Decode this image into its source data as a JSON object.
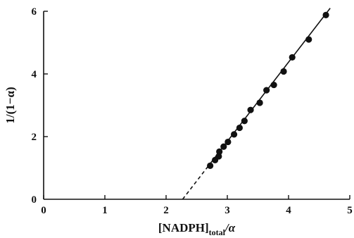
{
  "chart_data": {
    "type": "scatter",
    "xlim": [
      0,
      5
    ],
    "ylim": [
      0,
      6
    ],
    "xticks": [
      0,
      1,
      2,
      3,
      4,
      5
    ],
    "yticks": [
      2,
      4,
      6
    ],
    "xlabel_main": "[NADPH]",
    "xlabel_sub": "total",
    "xlabel_tail": "/α",
    "ylabel": "1/(1−α)",
    "grid": false,
    "points": [
      {
        "x": 2.72,
        "y": 1.07
      },
      {
        "x": 2.8,
        "y": 1.25
      },
      {
        "x": 2.86,
        "y": 1.37
      },
      {
        "x": 2.87,
        "y": 1.52
      },
      {
        "x": 2.94,
        "y": 1.68
      },
      {
        "x": 3.01,
        "y": 1.83
      },
      {
        "x": 3.11,
        "y": 2.07
      },
      {
        "x": 3.2,
        "y": 2.28
      },
      {
        "x": 3.28,
        "y": 2.5
      },
      {
        "x": 3.38,
        "y": 2.85
      },
      {
        "x": 3.53,
        "y": 3.08
      },
      {
        "x": 3.64,
        "y": 3.48
      },
      {
        "x": 3.76,
        "y": 3.65
      },
      {
        "x": 3.92,
        "y": 4.08
      },
      {
        "x": 4.06,
        "y": 4.53
      },
      {
        "x": 4.33,
        "y": 5.1
      },
      {
        "x": 4.61,
        "y": 5.88
      }
    ],
    "fit_line": {
      "x_start": 2.65,
      "x_end": 4.68,
      "x_intercept": 2.27,
      "slope": 2.53
    },
    "extrapolation": {
      "style": "dashed",
      "from_x": 2.27,
      "to_x": 2.65
    }
  }
}
